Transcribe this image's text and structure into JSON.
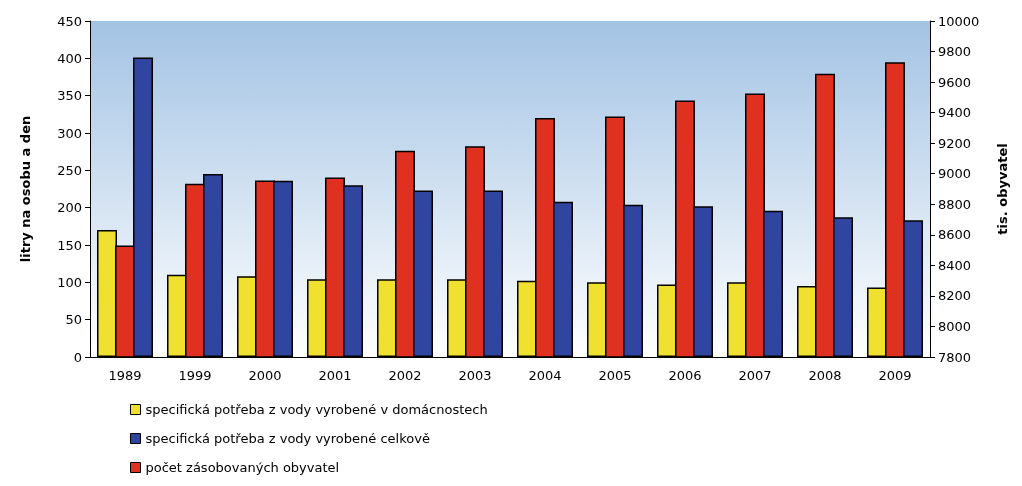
{
  "chart_data": {
    "type": "bar",
    "ylabel": "litry na osobu a den",
    "y2label": "tis. obyvatel",
    "categories": [
      "1989",
      "1999",
      "2000",
      "2001",
      "2002",
      "2003",
      "2004",
      "2005",
      "2006",
      "2007",
      "2008",
      "2009"
    ],
    "series": [
      {
        "name": "specifická potřeba z vody vyrobené v domácnostech",
        "color": "#f0e030",
        "values": [
          170,
          110,
          108,
          104,
          104,
          104,
          102,
          100,
          97,
          100,
          95,
          93
        ]
      },
      {
        "name": "počet zásobovaných obyvatel",
        "color": "#e03020",
        "axis": "y2",
        "values": [
          8530,
          8935,
          8955,
          8975,
          9150,
          9180,
          9365,
          9375,
          9480,
          9525,
          9655,
          9730
        ]
      },
      {
        "name": "specifická potřeba z vody vyrobené celkově",
        "color": "#3045a0",
        "values": [
          401,
          245,
          236,
          230,
          223,
          223,
          208,
          204,
          202,
          196,
          187,
          183
        ]
      }
    ],
    "ylim": [
      0,
      450
    ],
    "yticks": [
      0,
      50,
      100,
      150,
      200,
      250,
      300,
      350,
      400,
      450
    ],
    "y2lim": [
      7800,
      10000
    ],
    "y2ticks": [
      7800,
      8000,
      8200,
      8400,
      8600,
      8800,
      9000,
      9200,
      9400,
      9600,
      9800,
      10000
    ],
    "grid": false,
    "legend": "bottom left"
  }
}
